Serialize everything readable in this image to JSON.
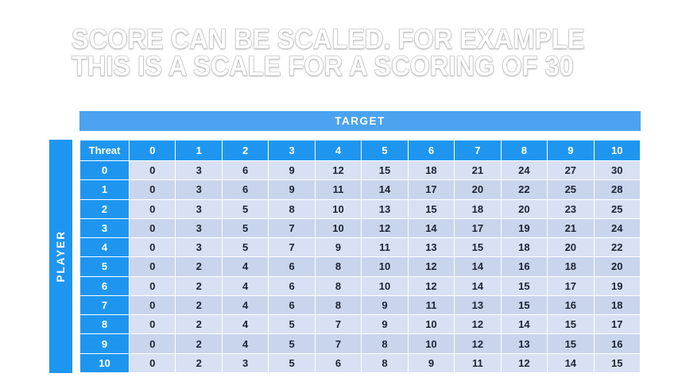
{
  "slide": {
    "title_line1": "SCORE CAN BE SCALED. FOR EXAMPLE",
    "title_line2": "THIS IS A SCALE FOR A SCORING OF 30"
  },
  "colors": {
    "header_blue": "#1E96F0",
    "target_blue": "#4BA3F0",
    "row_light": "#D8E1F3",
    "row_dark": "#C9D5ED",
    "cell_text": "#1C2333",
    "title_text": "#FFFFFF"
  },
  "table": {
    "target_label": "TARGET",
    "player_label": "PLAYER",
    "corner_label": "Threat",
    "column_headers": [
      "0",
      "1",
      "2",
      "3",
      "4",
      "5",
      "6",
      "7",
      "8",
      "9",
      "10"
    ],
    "rows": [
      {
        "header": "0",
        "values": [
          "0",
          "3",
          "6",
          "9",
          "12",
          "15",
          "18",
          "21",
          "24",
          "27",
          "30"
        ]
      },
      {
        "header": "1",
        "values": [
          "0",
          "3",
          "6",
          "9",
          "11",
          "14",
          "17",
          "20",
          "22",
          "25",
          "28"
        ]
      },
      {
        "header": "2",
        "values": [
          "0",
          "3",
          "5",
          "8",
          "10",
          "13",
          "15",
          "18",
          "20",
          "23",
          "25"
        ]
      },
      {
        "header": "3",
        "values": [
          "0",
          "3",
          "5",
          "7",
          "10",
          "12",
          "14",
          "17",
          "19",
          "21",
          "24"
        ]
      },
      {
        "header": "4",
        "values": [
          "0",
          "3",
          "5",
          "7",
          "9",
          "11",
          "13",
          "15",
          "18",
          "20",
          "22"
        ]
      },
      {
        "header": "5",
        "values": [
          "0",
          "2",
          "4",
          "6",
          "8",
          "10",
          "12",
          "14",
          "16",
          "18",
          "20"
        ]
      },
      {
        "header": "6",
        "values": [
          "0",
          "2",
          "4",
          "6",
          "8",
          "10",
          "12",
          "14",
          "15",
          "17",
          "19"
        ]
      },
      {
        "header": "7",
        "values": [
          "0",
          "2",
          "4",
          "6",
          "8",
          "9",
          "11",
          "13",
          "15",
          "16",
          "18"
        ]
      },
      {
        "header": "8",
        "values": [
          "0",
          "2",
          "4",
          "5",
          "7",
          "9",
          "10",
          "12",
          "14",
          "15",
          "17"
        ]
      },
      {
        "header": "9",
        "values": [
          "0",
          "2",
          "4",
          "5",
          "7",
          "8",
          "10",
          "12",
          "13",
          "15",
          "16"
        ]
      },
      {
        "header": "10",
        "values": [
          "0",
          "2",
          "3",
          "5",
          "6",
          "8",
          "9",
          "11",
          "12",
          "14",
          "15"
        ]
      }
    ]
  }
}
